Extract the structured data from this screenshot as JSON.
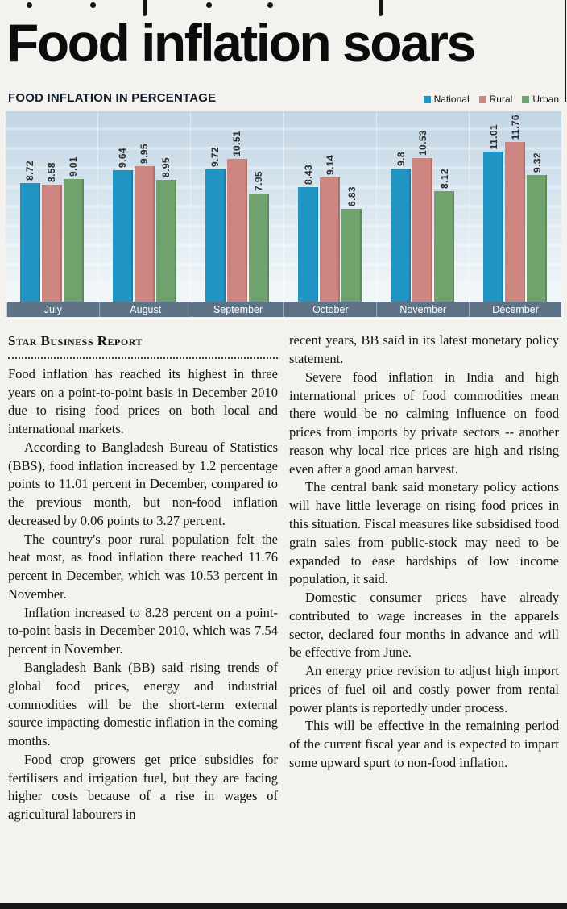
{
  "page": {
    "headline": "Food inflation soars"
  },
  "chart_data": {
    "type": "bar",
    "title": "FOOD INFLATION IN PERCENTAGE",
    "categories": [
      "July",
      "August",
      "September",
      "October",
      "November",
      "December"
    ],
    "series": [
      {
        "name": "National",
        "color": "#2095c3",
        "values": [
          8.72,
          9.64,
          9.72,
          8.43,
          9.8,
          11.01
        ]
      },
      {
        "name": "Rural",
        "color": "#cd867f",
        "values": [
          8.58,
          9.95,
          10.51,
          9.14,
          10.53,
          11.76
        ]
      },
      {
        "name": "Urban",
        "color": "#70a26e",
        "values": [
          9.01,
          8.95,
          7.95,
          6.83,
          8.12,
          9.32
        ]
      }
    ],
    "ylim": [
      0,
      14
    ],
    "grid": false,
    "legend_position": "top-right",
    "value_labels": "rotated-90",
    "axis_band_color": "#5e7386"
  },
  "article": {
    "byline": "Star Business Report",
    "columns": [
      {
        "paragraphs": [
          "Food inflation has reached its highest in three years on a point-to-point basis in December 2010 due to rising food prices on both local and international markets.",
          "According to Bangladesh Bureau of Statistics (BBS), food inflation increased by 1.2 percentage points to 11.01 percent in December, compared to the previous month, but non-food inflation decreased by 0.06 points to 3.27 percent.",
          "The country's poor rural population felt the heat most, as food inflation there reached 11.76 percent in December, which was 10.53 percent in November.",
          "Inflation increased to 8.28 percent on a point-to-point basis in December 2010, which was 7.54 percent in November.",
          "Bangladesh Bank (BB) said rising trends of global food prices, energy and industrial commodities will be the short-term external source impacting domestic inflation in the coming months.",
          "Food crop growers get price subsidies for fertilisers and irrigation fuel, but they are facing higher costs because of a rise in wages of agricultural labourers in"
        ]
      },
      {
        "paragraphs": [
          "recent years, BB said in its latest monetary policy statement.",
          "Severe food inflation in India and high international prices of food commodities mean there would be no calming influence on food prices from imports by private sectors -- another reason why local rice prices are high and rising even after a good aman harvest.",
          "The central bank said monetary policy actions will have little leverage on rising food prices in this situation. Fiscal measures like subsidised food grain sales from public-stock may need to be expanded to ease hardships of low income population, it said.",
          "Domestic consumer prices have already contributed to wage increases in the apparels sector, declared four months in advance and will be effective from June.",
          "An energy price revision to adjust high import prices of fuel oil and costly power from rental power plants is reportedly under process.",
          "This will be effective in the remaining period of the current fiscal year and is expected to impart some upward spurt to non-food inflation."
        ]
      }
    ]
  }
}
